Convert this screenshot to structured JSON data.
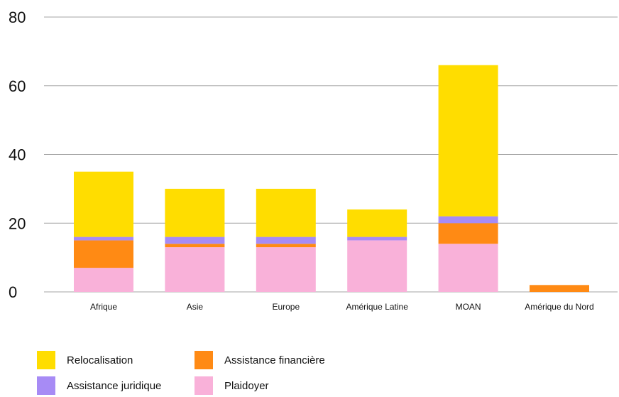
{
  "chart_data": {
    "type": "bar",
    "stacked": true,
    "categories": [
      "Afrique",
      "Asie",
      "Europe",
      "Amérique Latine",
      "MOAN",
      "Amérique du Nord"
    ],
    "series": [
      {
        "name": "Plaidoyer",
        "color": "#f9b1d9",
        "values": [
          7,
          13,
          13,
          15,
          14,
          0
        ]
      },
      {
        "name": "Assistance financière",
        "color": "#ff8a14",
        "values": [
          8,
          1,
          1,
          0,
          6,
          2
        ]
      },
      {
        "name": "Assistance juridique",
        "color": "#a78bf5",
        "values": [
          1,
          2,
          2,
          1,
          2,
          0
        ]
      },
      {
        "name": "Relocalisation",
        "color": "#ffdd00",
        "values": [
          19,
          14,
          14,
          8,
          44,
          0
        ]
      }
    ],
    "ylim": [
      0,
      80
    ],
    "yticks": [
      "0",
      "20",
      "40",
      "60",
      "80"
    ],
    "grid": true,
    "legend_position": "bottom-left",
    "title": "",
    "xlabel": "",
    "ylabel": ""
  },
  "legend": {
    "items": [
      {
        "label": "Relocalisation",
        "color": "#ffdd00",
        "icon": "square-swatch"
      },
      {
        "label": "Assistance financière",
        "color": "#ff8a14",
        "icon": "square-swatch"
      },
      {
        "label": "Assistance juridique",
        "color": "#a78bf5",
        "icon": "square-swatch"
      },
      {
        "label": "Plaidoyer",
        "color": "#f9b1d9",
        "icon": "square-swatch"
      }
    ]
  }
}
